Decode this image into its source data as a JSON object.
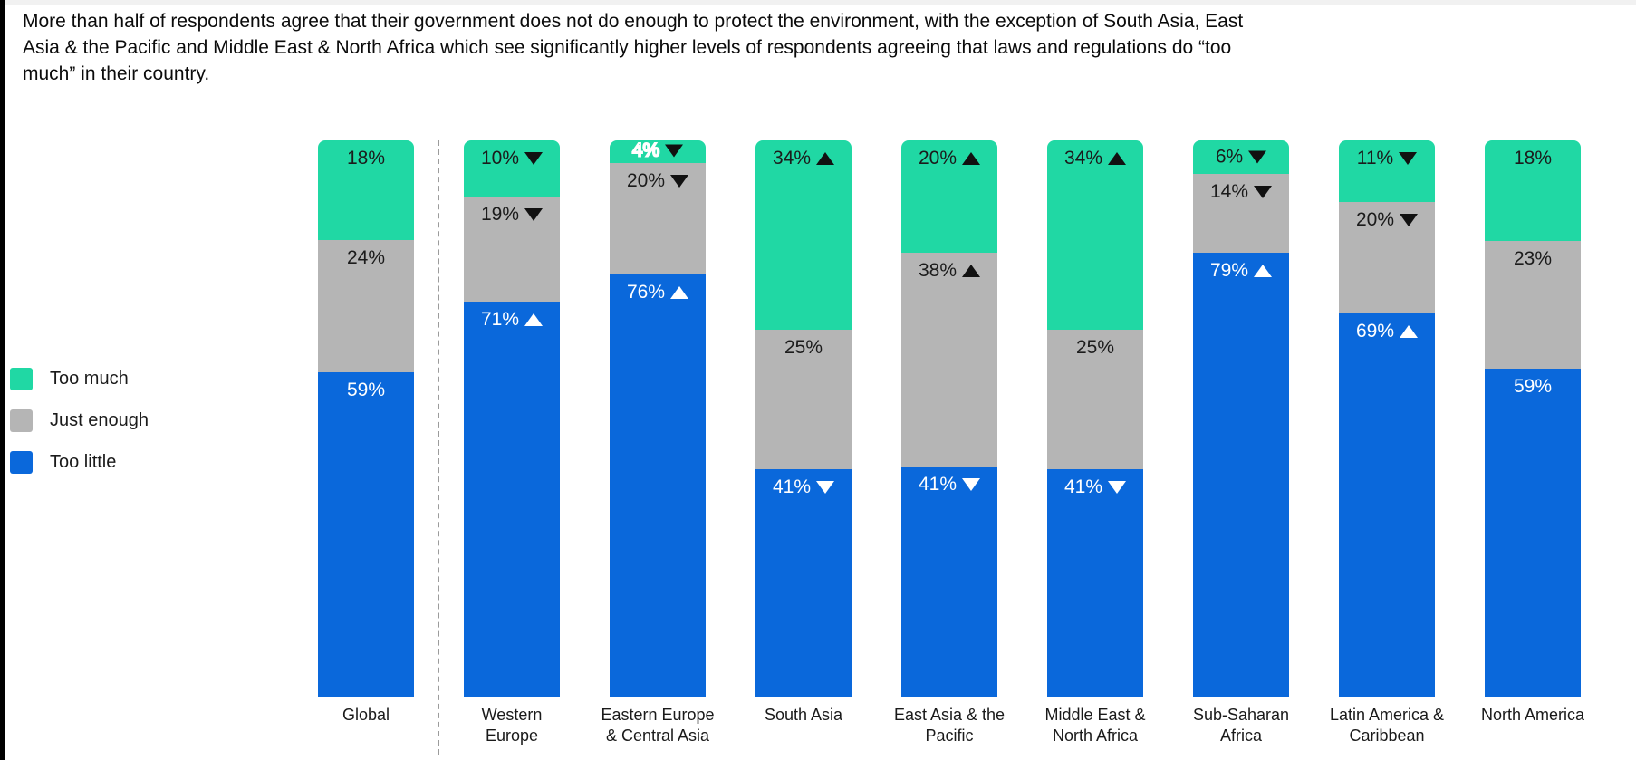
{
  "header": {
    "text": "More than half of respondents agree that their government does not do enough to protect the environment, with the exception of South Asia, East\nAsia & the Pacific and Middle East & North Africa which see significantly higher levels of respondents agreeing that laws and regulations do “too\nmuch” in their country."
  },
  "chart_data": {
    "type": "bar",
    "stacked": true,
    "orientation": "vertical",
    "value_unit": "%",
    "legend_position": "left",
    "grid": false,
    "legend": [
      {
        "name": "Too much",
        "color": "#20d8a4",
        "label_color": "#1b1b1b",
        "arrow_color": "#111111"
      },
      {
        "name": "Just enough",
        "color": "#b5b5b5",
        "label_color": "#1b1b1b",
        "arrow_color": "#111111"
      },
      {
        "name": "Too little",
        "color": "#0a68db",
        "label_color": "#ffffff",
        "arrow_color": "#ffffff"
      }
    ],
    "note": "arrow up/down marks significantly higher/lower vs global; dashed line separates Global from regions",
    "bars": [
      {
        "category": "Global",
        "segments": [
          {
            "series": "Too much",
            "value": 18,
            "arrow": null
          },
          {
            "series": "Just enough",
            "value": 24,
            "arrow": null
          },
          {
            "series": "Too little",
            "value": 59,
            "arrow": null
          }
        ]
      },
      {
        "category": "Western\nEurope",
        "segments": [
          {
            "series": "Too much",
            "value": 10,
            "arrow": "down"
          },
          {
            "series": "Just enough",
            "value": 19,
            "arrow": "down"
          },
          {
            "series": "Too little",
            "value": 71,
            "arrow": "up"
          }
        ]
      },
      {
        "category": "Eastern Europe\n& Central Asia",
        "segments": [
          {
            "series": "Too much",
            "value": 4,
            "arrow": "down",
            "label_style": "outline"
          },
          {
            "series": "Just enough",
            "value": 20,
            "arrow": "down"
          },
          {
            "series": "Too little",
            "value": 76,
            "arrow": "up"
          }
        ]
      },
      {
        "category": "South Asia",
        "segments": [
          {
            "series": "Too much",
            "value": 34,
            "arrow": "up"
          },
          {
            "series": "Just enough",
            "value": 25,
            "arrow": null
          },
          {
            "series": "Too little",
            "value": 41,
            "arrow": "down"
          }
        ]
      },
      {
        "category": "East Asia & the\nPacific",
        "segments": [
          {
            "series": "Too much",
            "value": 20,
            "arrow": "up"
          },
          {
            "series": "Just enough",
            "value": 38,
            "arrow": "up"
          },
          {
            "series": "Too little",
            "value": 41,
            "arrow": "down"
          }
        ]
      },
      {
        "category": "Middle East &\nNorth Africa",
        "segments": [
          {
            "series": "Too much",
            "value": 34,
            "arrow": "up"
          },
          {
            "series": "Just enough",
            "value": 25,
            "arrow": null
          },
          {
            "series": "Too little",
            "value": 41,
            "arrow": "down"
          }
        ]
      },
      {
        "category": "Sub-Saharan\nAfrica",
        "segments": [
          {
            "series": "Too much",
            "value": 6,
            "arrow": "down"
          },
          {
            "series": "Just enough",
            "value": 14,
            "arrow": "down"
          },
          {
            "series": "Too little",
            "value": 79,
            "arrow": "up"
          }
        ]
      },
      {
        "category": "Latin America &\nCaribbean",
        "segments": [
          {
            "series": "Too much",
            "value": 11,
            "arrow": "down"
          },
          {
            "series": "Just enough",
            "value": 20,
            "arrow": "down"
          },
          {
            "series": "Too little",
            "value": 69,
            "arrow": "up"
          }
        ]
      },
      {
        "category": "North America",
        "segments": [
          {
            "series": "Too much",
            "value": 18,
            "arrow": null
          },
          {
            "series": "Just enough",
            "value": 23,
            "arrow": null
          },
          {
            "series": "Too little",
            "value": 59,
            "arrow": null
          }
        ]
      }
    ]
  }
}
